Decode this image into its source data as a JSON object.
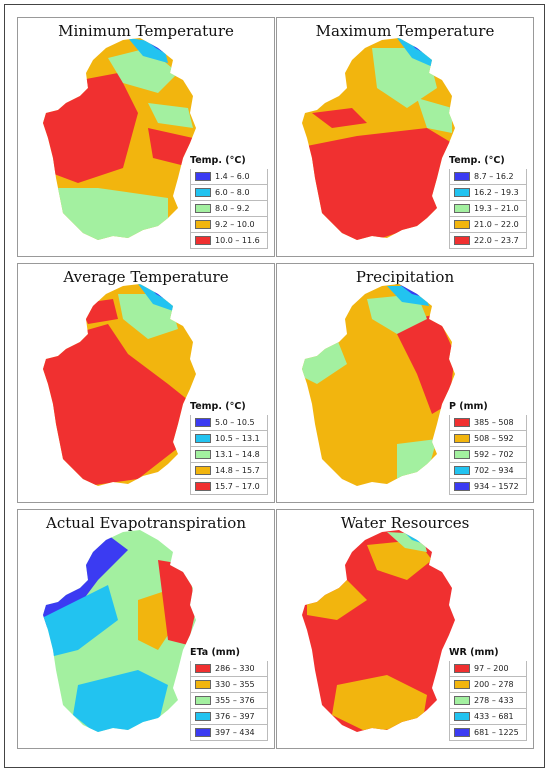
{
  "colors": {
    "blue": "#3b3bf2",
    "cyan": "#22c3f0",
    "green": "#a3f0a0",
    "orange": "#f2b50e",
    "red": "#f03030"
  },
  "panels": [
    {
      "title": "Minimum Temperature",
      "legend_title": "Temp. (°C)",
      "legend": [
        {
          "label": "1.4 – 6.0",
          "color": "#3b3bf2"
        },
        {
          "label": "6.0 – 8.0",
          "color": "#22c3f0"
        },
        {
          "label": "8.0 – 9.2",
          "color": "#a3f0a0"
        },
        {
          "label": "9.2 – 10.0",
          "color": "#f2b50e"
        },
        {
          "label": "10.0 – 11.6",
          "color": "#f03030"
        }
      ]
    },
    {
      "title": "Maximum Temperature",
      "legend_title": "Temp. (°C)",
      "legend": [
        {
          "label": "8.7 – 16.2",
          "color": "#3b3bf2"
        },
        {
          "label": "16.2 – 19.3",
          "color": "#22c3f0"
        },
        {
          "label": "19.3 – 21.0",
          "color": "#a3f0a0"
        },
        {
          "label": "21.0 – 22.0",
          "color": "#f2b50e"
        },
        {
          "label": "22.0 – 23.7",
          "color": "#f03030"
        }
      ]
    },
    {
      "title": "Average Temperature",
      "legend_title": "Temp. (°C)",
      "legend": [
        {
          "label": "5.0 – 10.5",
          "color": "#3b3bf2"
        },
        {
          "label": "10.5 – 13.1",
          "color": "#22c3f0"
        },
        {
          "label": "13.1 – 14.8",
          "color": "#a3f0a0"
        },
        {
          "label": "14.8 – 15.7",
          "color": "#f2b50e"
        },
        {
          "label": "15.7 – 17.0",
          "color": "#f03030"
        }
      ]
    },
    {
      "title": "Precipitation",
      "legend_title": "P (mm)",
      "legend": [
        {
          "label": "385 – 508",
          "color": "#f03030"
        },
        {
          "label": "508 – 592",
          "color": "#f2b50e"
        },
        {
          "label": "592 – 702",
          "color": "#a3f0a0"
        },
        {
          "label": "702 – 934",
          "color": "#22c3f0"
        },
        {
          "label": "934 – 1572",
          "color": "#3b3bf2"
        }
      ]
    },
    {
      "title": "Actual Evapotranspiration",
      "legend_title": "ETa (mm)",
      "legend": [
        {
          "label": "286 – 330",
          "color": "#f03030"
        },
        {
          "label": "330 – 355",
          "color": "#f2b50e"
        },
        {
          "label": "355 – 376",
          "color": "#a3f0a0"
        },
        {
          "label": "376 – 397",
          "color": "#22c3f0"
        },
        {
          "label": "397 – 434",
          "color": "#3b3bf2"
        }
      ]
    },
    {
      "title": "Water Resources",
      "legend_title": "WR (mm)",
      "legend": [
        {
          "label": "97 – 200",
          "color": "#f03030"
        },
        {
          "label": "200 – 278",
          "color": "#f2b50e"
        },
        {
          "label": "278 – 433",
          "color": "#a3f0a0"
        },
        {
          "label": "433 – 681",
          "color": "#22c3f0"
        },
        {
          "label": "681 – 1225",
          "color": "#3b3bf2"
        }
      ]
    }
  ]
}
